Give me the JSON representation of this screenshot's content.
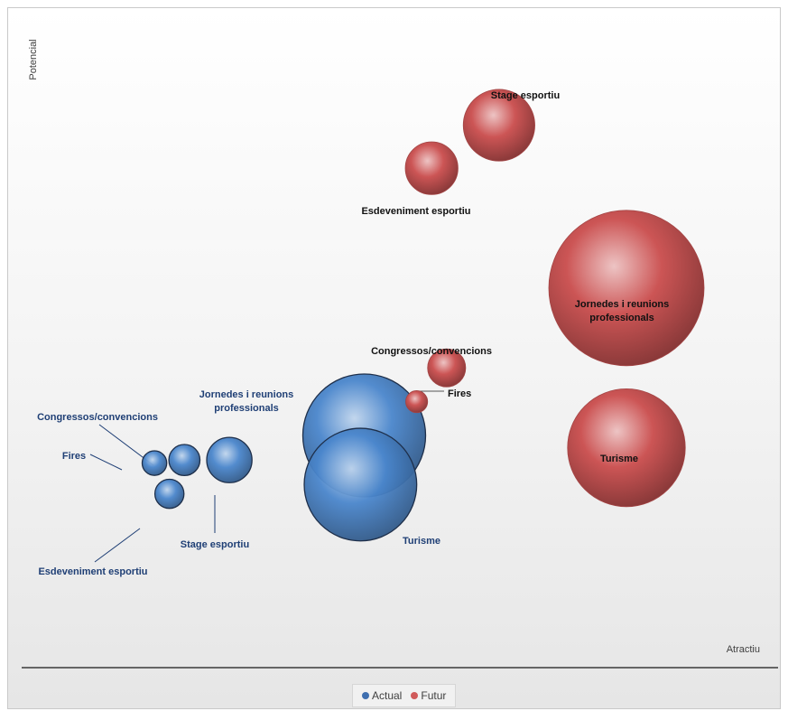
{
  "chart_data": {
    "type": "bubble",
    "xlabel": "Atractiu",
    "ylabel": "Potencial",
    "series": [
      {
        "name": "Actual",
        "color": "#4a86cc",
        "label_color": "#1f3f75",
        "points": [
          {
            "label": "Fires",
            "x": 1.7,
            "y": 3.05,
            "size": 1.0
          },
          {
            "label": "Congressos/convencions",
            "x": 2.1,
            "y": 3.1,
            "size": 1.6
          },
          {
            "label": "Stage esportiu",
            "x": 2.7,
            "y": 3.1,
            "size": 3.4
          },
          {
            "label": "Esdeveniment esportiu",
            "x": 1.9,
            "y": 2.55,
            "size": 1.4
          },
          {
            "label": "Jornedes i reunions professionals",
            "x": 4.5,
            "y": 3.5,
            "size": 25
          },
          {
            "label": "Turisme",
            "x": 4.45,
            "y": 2.7,
            "size": 21
          }
        ]
      },
      {
        "name": "Futur",
        "color": "#cc5555",
        "label_color": "#111111",
        "points": [
          {
            "label": "Stage esportiu",
            "x": 6.3,
            "y": 8.55,
            "size": 8.5
          },
          {
            "label": "Esdeveniment esportiu",
            "x": 5.4,
            "y": 7.85,
            "size": 4.6
          },
          {
            "label": "Jornedes i reunions professionals",
            "x": 8.0,
            "y": 5.9,
            "size": 40
          },
          {
            "label": "Turisme",
            "x": 8.0,
            "y": 3.3,
            "size": 23
          },
          {
            "label": "Congressos/convencions",
            "x": 5.6,
            "y": 4.6,
            "size": 2.4
          },
          {
            "label": "Fires",
            "x": 5.2,
            "y": 4.05,
            "size": 0.8
          }
        ]
      }
    ],
    "legend_position": "bottom"
  }
}
